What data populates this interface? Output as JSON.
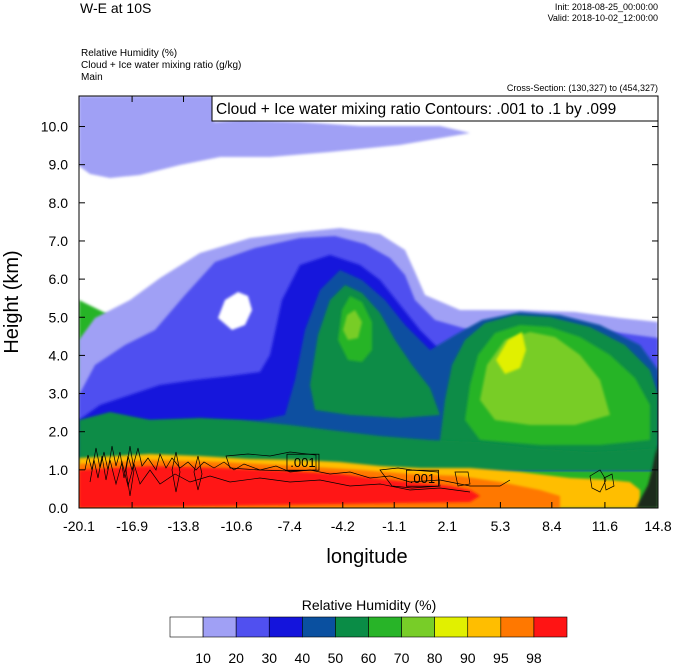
{
  "header": {
    "title": "W-E at 10S",
    "init": "Init: 2018-08-25_00:00:00",
    "valid": "Valid: 2018-10-02_12:00:00",
    "fields": [
      "Relative Humidity   (%)",
      "Cloud + Ice water mixing ratio   (g/kg)",
      "Main"
    ],
    "cross_section": "Cross-Section: (130,327) to (454,327)"
  },
  "chart_data": {
    "type": "heatmap",
    "title": "W-E at 10S",
    "xlabel": "longitude",
    "ylabel": "Height (km)",
    "xlim": [
      -20.1,
      14.8
    ],
    "ylim": [
      0.0,
      10.8
    ],
    "x_ticks": [
      "-20.1",
      "-16.9",
      "-13.8",
      "-10.6",
      "-7.4",
      "-4.2",
      "-1.1",
      "2.1",
      "5.3",
      "8.4",
      "11.6",
      "14.8"
    ],
    "y_ticks": [
      "0.0",
      "1.0",
      "2.0",
      "3.0",
      "4.0",
      "5.0",
      "6.0",
      "7.0",
      "8.0",
      "9.0",
      "10.0"
    ],
    "y_tick_values": [
      0,
      1,
      2,
      3,
      4,
      5,
      6,
      7,
      8,
      9,
      10
    ],
    "contour_title": "Cloud + Ice water mixing ratio Contours: .001 to .1 by .099",
    "contour_labels": [
      {
        "text": ".001",
        "lon": -6.6,
        "height": 1.2
      },
      {
        "text": ".001",
        "lon": 0.6,
        "height": 0.78
      }
    ],
    "colorbar": {
      "title": "Relative Humidity  (%)",
      "levels": [
        "10",
        "20",
        "30",
        "40",
        "50",
        "60",
        "70",
        "80",
        "90",
        "95",
        "98"
      ],
      "colors": [
        "#ffffff",
        "#a0a0f5",
        "#5050f0",
        "#1414dc",
        "#0a50a0",
        "#0a8c46",
        "#28b428",
        "#78cd28",
        "#e1f000",
        "#ffbe00",
        "#ff7800",
        "#ff1414"
      ]
    },
    "regions": [
      {
        "name": "moist-base",
        "bin": 6
      },
      {
        "name": "upper-white",
        "bin": 0
      },
      {
        "name": "upper-lavender",
        "bin": 1
      },
      {
        "name": "mid-lavender",
        "bin": 1
      },
      {
        "name": "mid-blue",
        "bin": 2
      },
      {
        "name": "dark-blue-band",
        "bin": 3
      },
      {
        "name": "plume-teal",
        "bin": 4
      },
      {
        "name": "east-green",
        "bin": 5
      },
      {
        "name": "east-light-green",
        "bin": 6
      },
      {
        "name": "east-lime",
        "bin": 7
      },
      {
        "name": "east-yellow",
        "bin": 8
      },
      {
        "name": "plume-green",
        "bin": 5
      },
      {
        "name": "plume-light-green",
        "bin": 6
      },
      {
        "name": "plume-lime",
        "bin": 7
      },
      {
        "name": "white-pocket-upper",
        "bin": 0
      },
      {
        "name": "white-pocket-lower",
        "bin": 0
      },
      {
        "name": "lower-green-layer",
        "bin": 5
      },
      {
        "name": "boundary-orange",
        "bin": 9
      },
      {
        "name": "boundary-dark-orange",
        "bin": 10
      },
      {
        "name": "boundary-red",
        "bin": 11
      },
      {
        "name": "terrain-dark",
        "bin": -1
      }
    ]
  }
}
